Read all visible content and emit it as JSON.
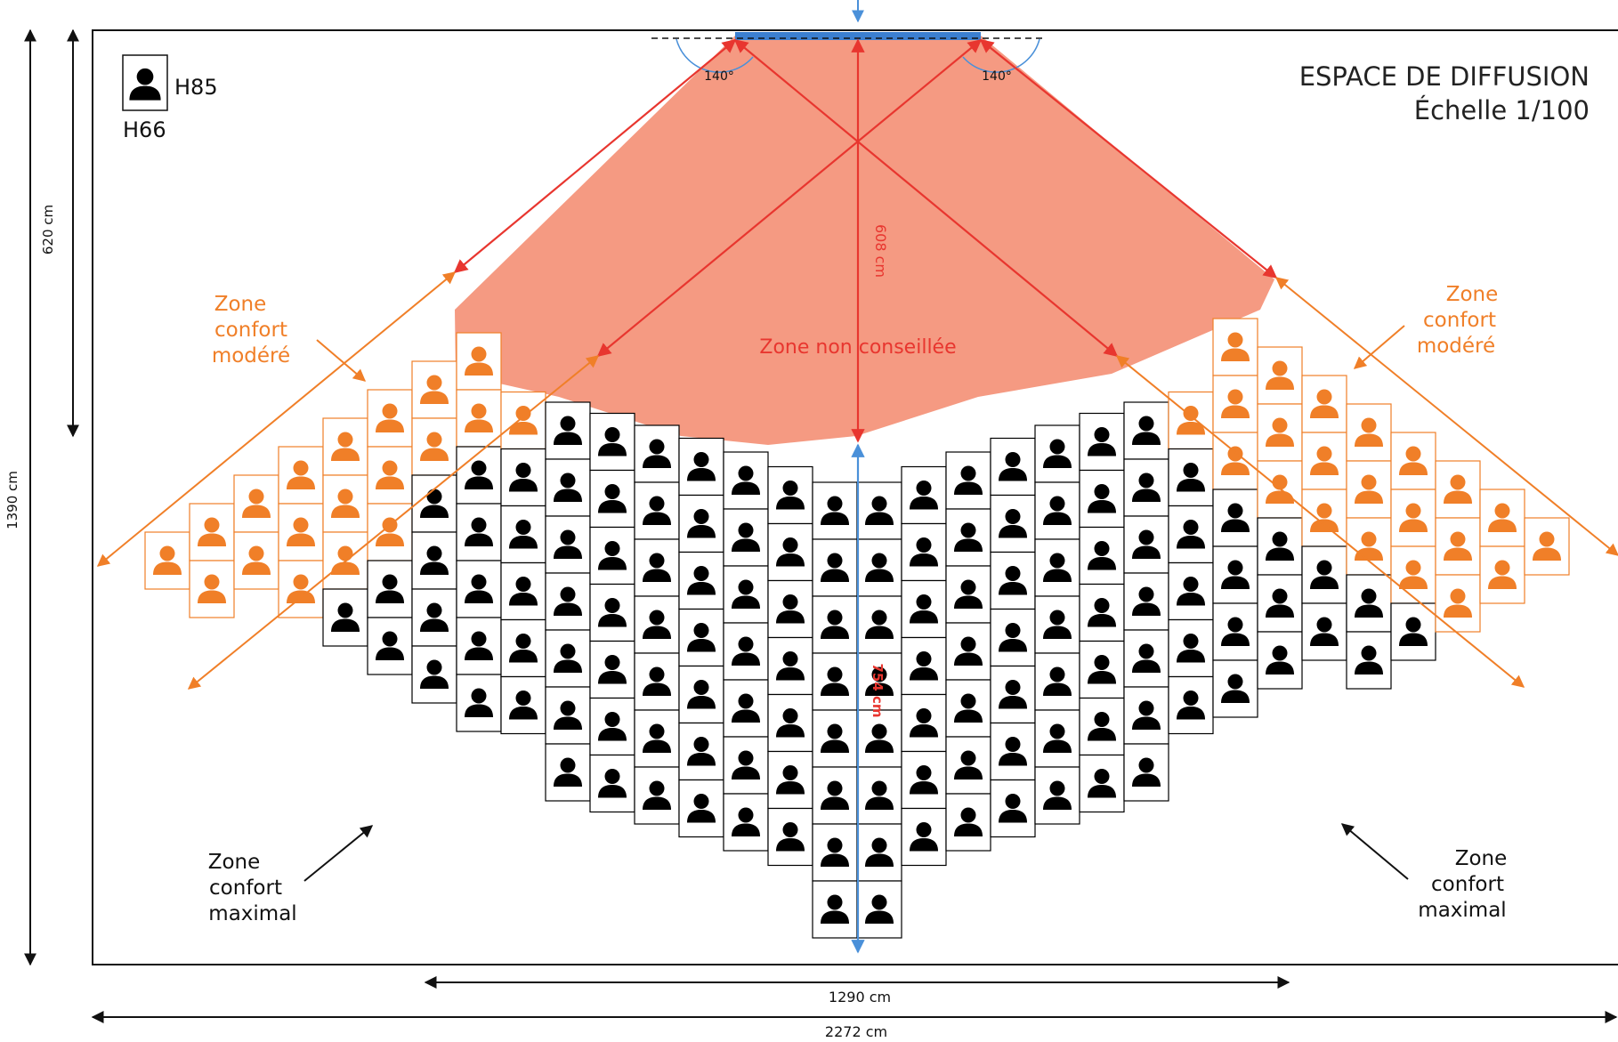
{
  "title": {
    "line1": "ESPACE DE DIFFUSION",
    "line2": "Échelle 1/100"
  },
  "legend": {
    "icon": "person-seat-icon",
    "height_standing": "H85",
    "height_seated": "H66"
  },
  "dimensions": {
    "total_height": "1390 cm",
    "upper_height": "620 cm",
    "seating_width": "1290 cm",
    "total_width": "2272  cm",
    "screen_to_seats": "608 cm",
    "seats_depth": "754 cm"
  },
  "angles": {
    "left": "140°",
    "right": "140°"
  },
  "zones": {
    "not_advised": "Zone non conseillée",
    "moderate_left": [
      "Zone",
      "confort",
      "modéré"
    ],
    "moderate_right": [
      "Zone",
      "confort",
      "modéré"
    ],
    "maximal_left": [
      "Zone",
      "confort",
      "maximal"
    ],
    "maximal_right": [
      "Zone",
      "confort",
      "maximal"
    ]
  },
  "colors": {
    "frame": "#111111",
    "screen": "#3b7fd0",
    "not_advised_fill": "#f59a82",
    "sightline_red": "#e8362f",
    "moderate_orange": "#f07f28",
    "maximal_black": "#000000",
    "center_axis_blue": "#4a90d9"
  },
  "seating": {
    "moderate_seat_color": "#f07f28",
    "maximal_seat_color": "#000000",
    "columns": 34
  }
}
